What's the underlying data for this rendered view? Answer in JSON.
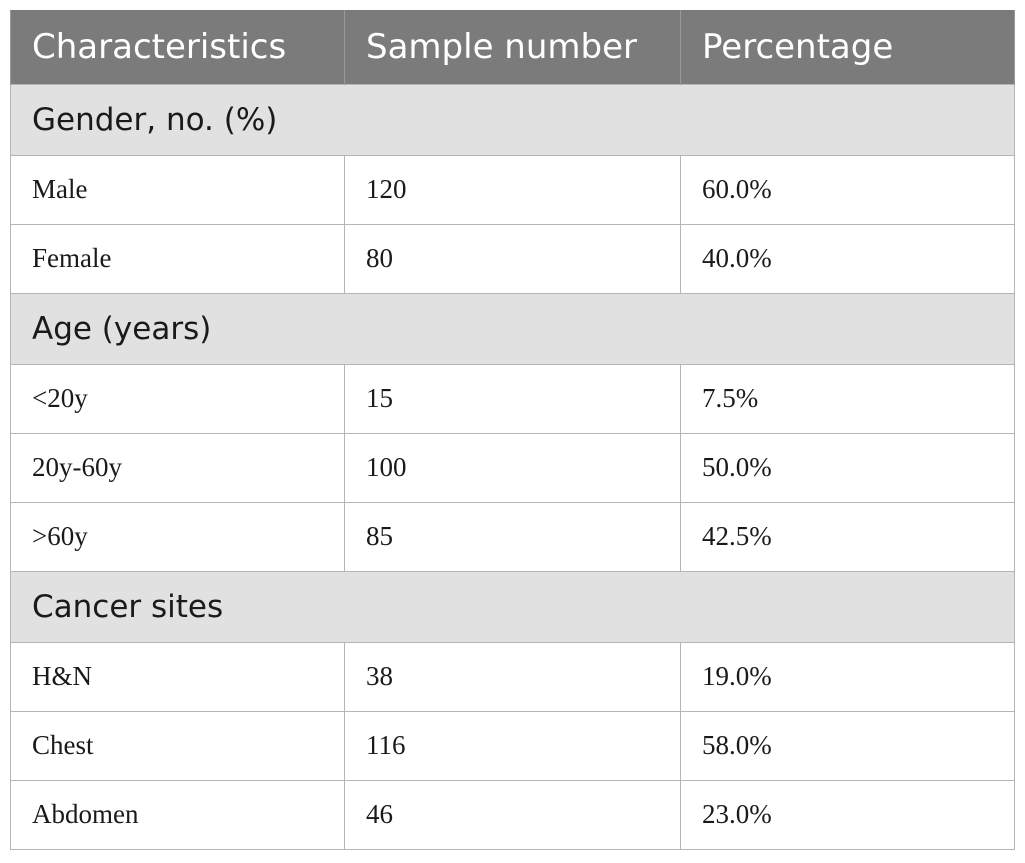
{
  "table": {
    "headers": [
      "Characteristics",
      "Sample number",
      "Percentage"
    ],
    "groups": [
      {
        "title": "Gender, no. (%)",
        "rows": [
          {
            "label": "Male",
            "number": "120",
            "percent": "60.0%"
          },
          {
            "label": "Female",
            "number": "80",
            "percent": "40.0%"
          }
        ]
      },
      {
        "title": "Age (years)",
        "rows": [
          {
            "label": "<20y",
            "number": "15",
            "percent": "7.5%"
          },
          {
            "label": "20y-60y",
            "number": "100",
            "percent": "50.0%"
          },
          {
            "label": ">60y",
            "number": "85",
            "percent": "42.5%"
          }
        ]
      },
      {
        "title": "Cancer sites",
        "rows": [
          {
            "label": "H&N",
            "number": "38",
            "percent": "19.0%"
          },
          {
            "label": "Chest",
            "number": "116",
            "percent": "58.0%"
          },
          {
            "label": "Abdomen",
            "number": "46",
            "percent": "23.0%"
          }
        ]
      }
    ]
  },
  "colors": {
    "header_bg": "#7a7b7a",
    "group_bg": "#e1e1e1",
    "border": "#b5b5b5"
  }
}
